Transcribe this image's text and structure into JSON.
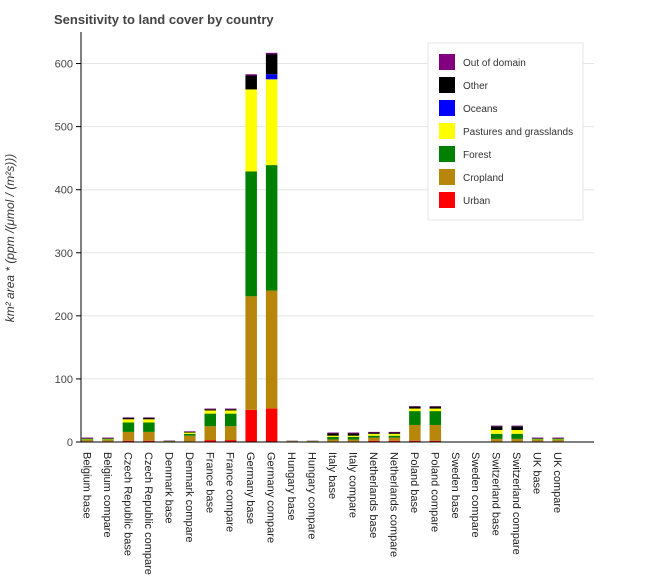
{
  "chart_data": {
    "type": "bar",
    "stacked": true,
    "title": "Sensitivity to land cover by country",
    "xlabel": "",
    "ylabel": "km² area * (ppm /(μmol / (m²s)))",
    "ylim": [
      0,
      650
    ],
    "yticks": [
      0,
      100,
      200,
      300,
      400,
      500,
      600
    ],
    "grid": true,
    "legend_position": "top-right",
    "categories": [
      "Belgium base",
      "Belgium compare",
      "Czech Republic base",
      "Czech Republic compare",
      "Denmark base",
      "Denmark compare",
      "France base",
      "France compare",
      "Germany base",
      "Germany compare",
      "Hungary base",
      "Hungary compare",
      "Italy base",
      "Italy compare",
      "Netherlands base",
      "Netherlands compare",
      "Poland base",
      "Poland compare",
      "Sweden base",
      "Sweden compare",
      "Switzerland base",
      "Switzerland compare",
      "UK base",
      "UK compare"
    ],
    "series": [
      {
        "name": "Urban",
        "color": "#ff0000",
        "values": [
          1,
          1,
          2,
          2,
          0.3,
          1,
          3,
          3,
          51,
          53,
          0.2,
          0.2,
          1,
          1,
          2,
          2,
          2,
          2,
          0.1,
          0.1,
          1,
          1,
          1,
          1
        ]
      },
      {
        "name": "Cropland",
        "color": "#b8860b",
        "values": [
          2,
          2,
          14,
          14,
          1,
          9,
          22,
          22,
          180,
          187,
          1,
          1,
          3,
          3,
          5,
          5,
          25,
          25,
          0.2,
          0.2,
          4,
          4,
          2,
          2
        ]
      },
      {
        "name": "Forest",
        "color": "#008000",
        "values": [
          1,
          1,
          15,
          15,
          0.3,
          3,
          20,
          20,
          198,
          199,
          0.3,
          0.3,
          4,
          4,
          3,
          3,
          22,
          22,
          0.2,
          0.2,
          8,
          8,
          1,
          1
        ]
      },
      {
        "name": "Pastures and grasslands",
        "color": "#ffff00",
        "values": [
          1,
          1,
          5,
          5,
          0.2,
          2,
          5,
          5,
          130,
          136,
          0.2,
          0.2,
          2,
          2,
          3,
          3,
          4,
          4,
          0.1,
          0.1,
          6,
          6,
          1,
          1
        ]
      },
      {
        "name": "Oceans",
        "color": "#0000ff",
        "values": [
          0,
          0,
          0,
          0,
          0,
          0,
          0,
          0,
          0,
          8,
          0,
          0,
          0,
          0,
          0,
          0,
          0,
          0,
          0,
          0,
          0,
          0,
          0,
          0
        ]
      },
      {
        "name": "Other",
        "color": "#000000",
        "values": [
          1,
          1,
          2,
          2,
          0.2,
          1,
          2,
          2,
          22,
          32,
          0.2,
          0.2,
          4,
          4,
          2,
          2,
          3,
          3,
          0.1,
          0.1,
          6,
          6,
          1,
          1
        ]
      },
      {
        "name": "Out of domain",
        "color": "#800080",
        "values": [
          1,
          1,
          1,
          1,
          0.5,
          1,
          1,
          1,
          2,
          2,
          0.3,
          0.3,
          1,
          1,
          1,
          1,
          1,
          1,
          0.1,
          0.1,
          1,
          1,
          1,
          1
        ]
      }
    ]
  }
}
